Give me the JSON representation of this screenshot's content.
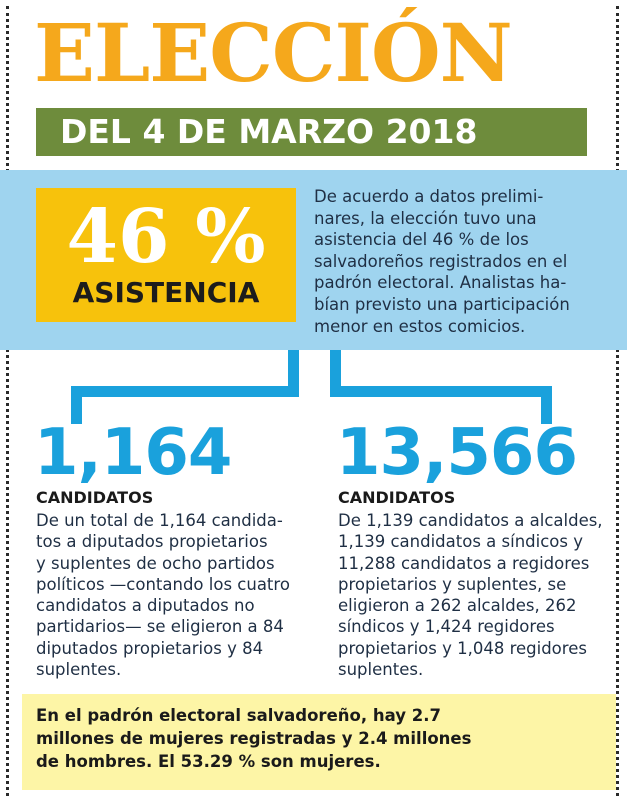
{
  "header": {
    "title": "ELECCIÓN",
    "date": "DEL 4 DE MARZO 2018"
  },
  "turnout": {
    "percent": "46 %",
    "label": "ASISTENCIA",
    "description_lines": [
      "De acuerdo a datos prelimi-",
      "nares, la elección tuvo una",
      "asistencia del 46 % de los",
      "salvadoreños registrados en el",
      "padrón electoral. Analistas ha-",
      "bían previsto una participación",
      "menor en estos comicios."
    ]
  },
  "stats": [
    {
      "number": "1,164",
      "label": "CANDIDATOS",
      "description_lines": [
        "De un total de 1,164 candida-",
        "tos a diputados propietarios",
        "y suplentes de ocho partidos",
        "políticos —contando los cuatro",
        "candidatos a diputados no",
        "partidarios— se eligieron a 84",
        "diputados propietarios y 84",
        "suplentes."
      ]
    },
    {
      "number": "13,566",
      "label": "CANDIDATOS",
      "description_lines": [
        "De 1,139 candidatos a alcaldes,",
        "1,139 candidatos a síndicos y",
        "11,288 candidatos a regidores",
        "propietarios y suplentes, se",
        "eligieron a 262 alcaldes, 262",
        "síndicos y 1,424 regidores",
        "propietarios y 1,048 regidores",
        "suplentes."
      ]
    }
  ],
  "footer": {
    "lines": [
      "En el padrón electoral salvadoreño, hay 2.7",
      "millones de mujeres registradas y 2.4 millones",
      "de hombres. El 53.29 % son mujeres."
    ]
  },
  "colors": {
    "title": "#f5a81c",
    "date_bar": "#6e8c3c",
    "blue_band": "#9fd4ef",
    "percent_box": "#f7c20c",
    "accent_blue": "#1aa1dc",
    "footer_bg": "#fdf5a6"
  }
}
